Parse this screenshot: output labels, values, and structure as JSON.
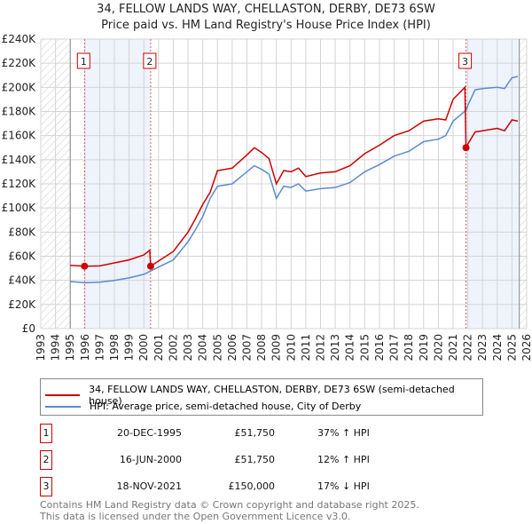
{
  "title_line1": "34, FELLOW LANDS WAY, CHELLASTON, DERBY, DE73 6SW",
  "title_line2": "Price paid vs. HM Land Registry's House Price Index (HPI)",
  "chart_data": {
    "type": "line",
    "title": "34, FELLOW LANDS WAY, CHELLASTON, DERBY, DE73 6SW — Price paid vs. HM Land Registry's House Price Index (HPI)",
    "xlim": [
      1993,
      2026
    ],
    "ylim": [
      0,
      240000
    ],
    "x_ticks": [
      "1993",
      "1994",
      "1995",
      "1996",
      "1997",
      "1998",
      "1999",
      "2000",
      "2001",
      "2002",
      "2003",
      "2004",
      "2005",
      "2006",
      "2007",
      "2008",
      "2009",
      "2010",
      "2011",
      "2012",
      "2013",
      "2014",
      "2015",
      "2016",
      "2017",
      "2018",
      "2019",
      "2020",
      "2021",
      "2022",
      "2023",
      "2024",
      "2025",
      "2026"
    ],
    "y_ticks": [
      "£0",
      "£20K",
      "£40K",
      "£60K",
      "£80K",
      "£100K",
      "£120K",
      "£140K",
      "£160K",
      "£180K",
      "£200K",
      "£220K",
      "£240K"
    ],
    "grid": true,
    "series": [
      {
        "name": "34, FELLOW LANDS WAY, CHELLASTON, DERBY, DE73 6SW (semi-detached house)",
        "color": "#cc0000",
        "x": [
          1995,
          1996,
          1997,
          1998,
          1999,
          2000,
          2000.4,
          2000.46,
          2001,
          2002,
          2003,
          2003.5,
          2004,
          2004.5,
          2005,
          2006,
          2007,
          2007.5,
          2008,
          2008.5,
          2009,
          2009.5,
          2010,
          2010.5,
          2011,
          2012,
          2013,
          2014,
          2015,
          2016,
          2017,
          2018,
          2019,
          2020,
          2020.5,
          2021,
          2021.8,
          2021.88,
          2022,
          2022.5,
          2023,
          2024,
          2024.5,
          2025,
          2025.4
        ],
        "y": [
          52500,
          51750,
          52000,
          54500,
          57000,
          61000,
          65000,
          51750,
          56000,
          64000,
          80000,
          91000,
          103000,
          113000,
          131000,
          133000,
          144000,
          150000,
          146000,
          141000,
          120000,
          131000,
          130000,
          133000,
          126000,
          129000,
          130000,
          135000,
          145000,
          152000,
          160000,
          164000,
          172000,
          174000,
          173000,
          190000,
          200000,
          150000,
          153000,
          163000,
          164000,
          166000,
          164000,
          173000,
          172000
        ]
      },
      {
        "name": "HPI: Average price, semi-detached house, City of Derby",
        "color": "#5b8bd0",
        "x": [
          1995,
          1996,
          1997,
          1998,
          1999,
          2000,
          2000.5,
          2001,
          2002,
          2003,
          2003.5,
          2004,
          2004.5,
          2005,
          2006,
          2007,
          2007.5,
          2008,
          2008.5,
          2009,
          2009.5,
          2010,
          2010.5,
          2011,
          2012,
          2013,
          2014,
          2015,
          2016,
          2017,
          2018,
          2019,
          2020,
          2020.5,
          2021,
          2021.88,
          2022,
          2022.5,
          2023,
          2024,
          2024.5,
          2025,
          2025.4
        ],
        "y": [
          39000,
          38000,
          38500,
          40000,
          42000,
          45000,
          48000,
          51000,
          57000,
          72000,
          82000,
          93000,
          108000,
          118000,
          120000,
          130000,
          135000,
          132000,
          128000,
          108000,
          118000,
          117000,
          120000,
          114000,
          116000,
          117000,
          121000,
          130000,
          136000,
          143000,
          147000,
          155000,
          157000,
          160000,
          172000,
          181000,
          185000,
          198000,
          199000,
          200000,
          199000,
          208000,
          209000
        ]
      }
    ],
    "sales": [
      {
        "label": "1",
        "x": 1995.97,
        "y": 51750
      },
      {
        "label": "2",
        "x": 2000.46,
        "y": 51750
      },
      {
        "label": "3",
        "x": 2021.88,
        "y": 150000
      }
    ],
    "legend_placement": "below"
  },
  "legend": {
    "red": "34, FELLOW LANDS WAY, CHELLASTON, DERBY, DE73 6SW (semi-detached house)",
    "blue": "HPI: Average price, semi-detached house, City of Derby"
  },
  "transactions": [
    {
      "num": "1",
      "date": "20-DEC-1995",
      "price": "£51,750",
      "hpi": "37% ↑ HPI"
    },
    {
      "num": "2",
      "date": "16-JUN-2000",
      "price": "£51,750",
      "hpi": "12% ↑ HPI"
    },
    {
      "num": "3",
      "date": "18-NOV-2021",
      "price": "£150,000",
      "hpi": "17% ↓ HPI"
    }
  ],
  "footer_line1": "Contains HM Land Registry data © Crown copyright and database right 2025.",
  "footer_line2": "This data is licensed under the Open Government Licence v3.0."
}
